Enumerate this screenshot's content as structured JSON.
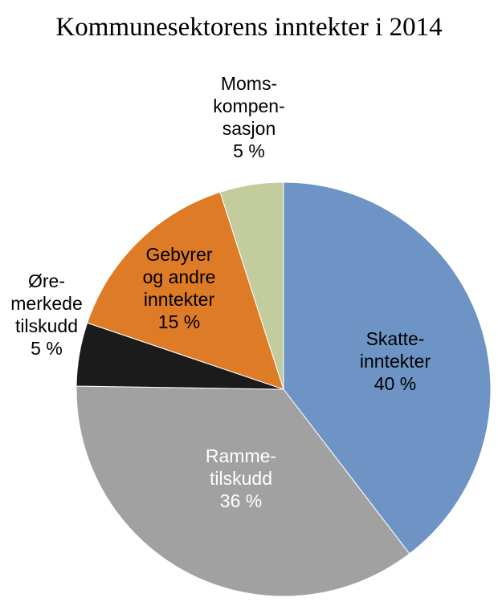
{
  "title": "Kommunesektorens inntekter i 2014",
  "chart_data": {
    "type": "pie",
    "title": "Kommunesektorens inntekter i 2014",
    "values_unit": "%",
    "start_angle_deg": -90,
    "direction": "clockwise",
    "legend": "none",
    "slices": [
      {
        "id": "skatteinntekter",
        "label": "Skatteinntekter",
        "value": 40,
        "color": "#6d94c5",
        "label_display": "Skatte-\ninntekter\n40 %",
        "label_placement": "inside",
        "label_color": "#000000"
      },
      {
        "id": "rammetilskudd",
        "label": "Rammetilskudd",
        "value": 36,
        "color": "#a1a1a1",
        "label_display": "Ramme-\ntilskudd\n36 %",
        "label_placement": "inside",
        "label_color": "#ffffff"
      },
      {
        "id": "oremerkede-tilskudd",
        "label": "Øremerkede tilskudd",
        "value": 5,
        "color": "#1b1b1b",
        "label_display": "Øre-\nmerkede\ntilskudd\n5 %",
        "label_placement": "outside",
        "label_color": "#000000"
      },
      {
        "id": "gebyrer-og-andre-inntekter",
        "label": "Gebyrer og andre inntekter",
        "value": 15,
        "color": "#dd7b27",
        "label_display": "Gebyrer\nog andre\ninntekter\n15 %",
        "label_placement": "inside",
        "label_color": "#000000"
      },
      {
        "id": "momskompensasjon",
        "label": "Momskompensasjon",
        "value": 5,
        "color": "#c3cc9c",
        "label_display": "Moms-\nkompen-\nsasjon\n5 %",
        "label_placement": "outside",
        "label_color": "#000000"
      }
    ]
  }
}
